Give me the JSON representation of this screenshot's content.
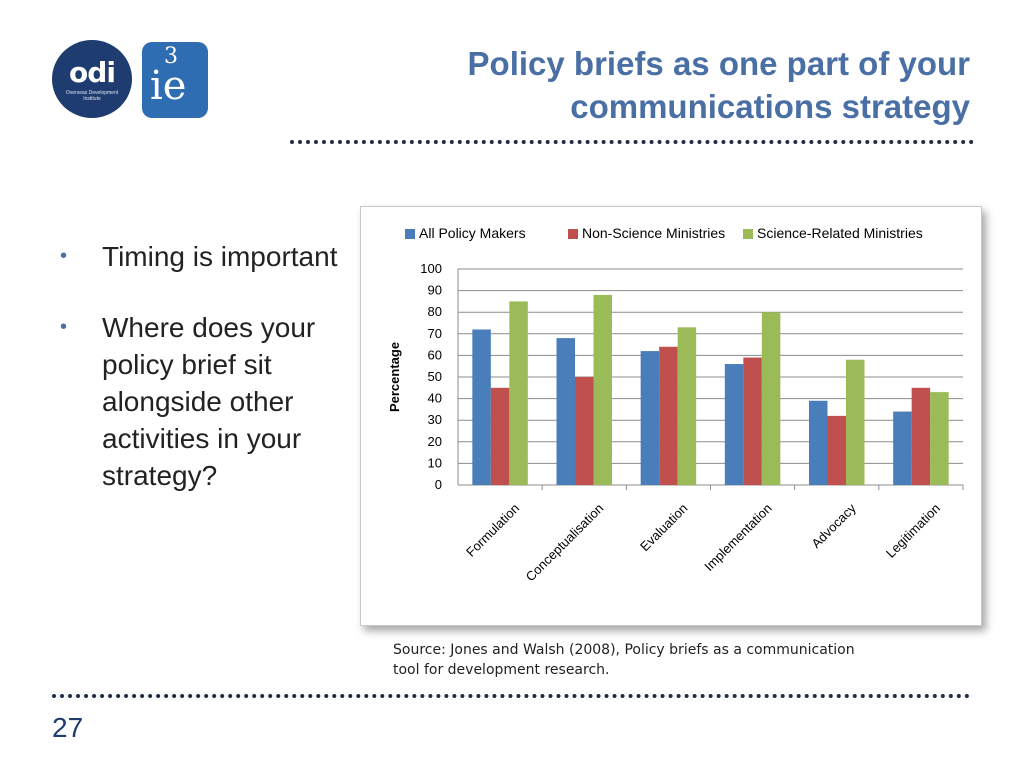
{
  "logos": {
    "odi_text": "odi",
    "odi_sub": "Overseas Development Institute",
    "ie_mark": "3",
    "ie_text": "ie"
  },
  "title": "Policy briefs as one part of your communications strategy",
  "bullets": [
    "Timing is important",
    "Where does your policy brief sit alongside other activities in your strategy?"
  ],
  "source": "Source: Jones and Walsh (2008), Policy briefs as a communication tool for development research.",
  "slide_number": "27",
  "colors": {
    "title": "#4a6fa5",
    "series": [
      "#4a7ebb",
      "#c0504d",
      "#9bbb59"
    ]
  },
  "chart_data": {
    "type": "bar",
    "categories": [
      "Formulation",
      "Conceptualisation",
      "Evaluation",
      "Implementation",
      "Advocacy",
      "Legitimation"
    ],
    "series": [
      {
        "name": "All Policy Makers",
        "values": [
          72,
          68,
          62,
          56,
          39,
          34
        ]
      },
      {
        "name": "Non-Science Ministries",
        "values": [
          45,
          50,
          64,
          59,
          32,
          45
        ]
      },
      {
        "name": "Science-Related Ministries",
        "values": [
          85,
          88,
          73,
          80,
          58,
          43
        ]
      }
    ],
    "ylabel": "Percentage",
    "xlabel": "",
    "ylim": [
      0,
      100
    ],
    "yticks": [
      0,
      10,
      20,
      30,
      40,
      50,
      60,
      70,
      80,
      90,
      100
    ],
    "grid": true,
    "legend": "top"
  }
}
